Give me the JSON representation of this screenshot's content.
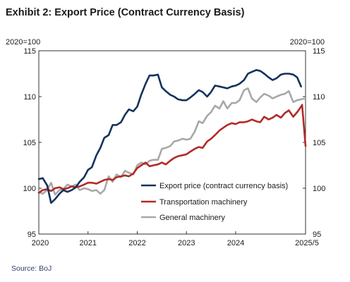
{
  "chart_data": {
    "type": "line",
    "title": "Exhibit 2: Export Price (Contract Currency Basis)",
    "left_unit": "2020=100",
    "right_unit": "2020=100",
    "ylim": [
      95,
      115
    ],
    "yticks": [
      95,
      100,
      105,
      110,
      115
    ],
    "xlim": [
      2020.0,
      2025.42
    ],
    "xticks": [
      {
        "value": 2020,
        "label": "2020"
      },
      {
        "value": 2021,
        "label": "2021"
      },
      {
        "value": 2022,
        "label": "2022"
      },
      {
        "value": 2023,
        "label": "2023"
      },
      {
        "value": 2024,
        "label": "2024"
      },
      {
        "value": 2025.42,
        "label": "2025/5"
      }
    ],
    "legend_position": "bottom-right",
    "source": "Source: BoJ",
    "series": [
      {
        "name": "Export price (contract currency basis)",
        "color": "#14325c",
        "points": [
          [
            2020.0,
            101.0
          ],
          [
            2020.08,
            101.1
          ],
          [
            2020.17,
            100.3
          ],
          [
            2020.25,
            98.4
          ],
          [
            2020.33,
            98.8
          ],
          [
            2020.42,
            99.4
          ],
          [
            2020.5,
            99.8
          ],
          [
            2020.58,
            99.6
          ],
          [
            2020.67,
            99.8
          ],
          [
            2020.75,
            100.1
          ],
          [
            2020.83,
            100.7
          ],
          [
            2020.92,
            101.2
          ],
          [
            2021.0,
            102.0
          ],
          [
            2021.08,
            102.3
          ],
          [
            2021.17,
            103.6
          ],
          [
            2021.25,
            104.4
          ],
          [
            2021.33,
            105.5
          ],
          [
            2021.42,
            105.8
          ],
          [
            2021.5,
            106.9
          ],
          [
            2021.58,
            106.9
          ],
          [
            2021.67,
            107.2
          ],
          [
            2021.75,
            108.0
          ],
          [
            2021.83,
            108.6
          ],
          [
            2021.92,
            108.4
          ],
          [
            2022.0,
            108.9
          ],
          [
            2022.08,
            110.2
          ],
          [
            2022.17,
            111.4
          ],
          [
            2022.25,
            112.3
          ],
          [
            2022.33,
            112.3
          ],
          [
            2022.42,
            112.4
          ],
          [
            2022.5,
            111.0
          ],
          [
            2022.58,
            110.6
          ],
          [
            2022.67,
            110.2
          ],
          [
            2022.75,
            110.0
          ],
          [
            2022.83,
            109.7
          ],
          [
            2022.92,
            109.6
          ],
          [
            2023.0,
            109.6
          ],
          [
            2023.08,
            109.9
          ],
          [
            2023.17,
            110.3
          ],
          [
            2023.25,
            110.7
          ],
          [
            2023.33,
            110.5
          ],
          [
            2023.42,
            110.0
          ],
          [
            2023.5,
            110.5
          ],
          [
            2023.58,
            111.2
          ],
          [
            2023.67,
            111.1
          ],
          [
            2023.75,
            111.0
          ],
          [
            2023.83,
            110.9
          ],
          [
            2023.92,
            111.1
          ],
          [
            2024.0,
            111.2
          ],
          [
            2024.08,
            111.4
          ],
          [
            2024.17,
            111.8
          ],
          [
            2024.25,
            112.5
          ],
          [
            2024.33,
            112.7
          ],
          [
            2024.42,
            112.9
          ],
          [
            2024.5,
            112.8
          ],
          [
            2024.58,
            112.5
          ],
          [
            2024.67,
            112.1
          ],
          [
            2024.75,
            111.8
          ],
          [
            2024.83,
            112.0
          ],
          [
            2024.92,
            112.4
          ],
          [
            2025.0,
            112.5
          ],
          [
            2025.08,
            112.5
          ],
          [
            2025.17,
            112.4
          ],
          [
            2025.25,
            112.1
          ],
          [
            2025.33,
            111.1
          ]
        ]
      },
      {
        "name": "Transportation machinery",
        "color": "#b22a25",
        "points": [
          [
            2020.0,
            99.5
          ],
          [
            2020.08,
            99.8
          ],
          [
            2020.17,
            99.9
          ],
          [
            2020.25,
            99.7
          ],
          [
            2020.33,
            100.0
          ],
          [
            2020.42,
            100.1
          ],
          [
            2020.5,
            99.9
          ],
          [
            2020.58,
            100.0
          ],
          [
            2020.67,
            100.2
          ],
          [
            2020.75,
            100.1
          ],
          [
            2020.83,
            100.2
          ],
          [
            2020.92,
            100.4
          ],
          [
            2021.0,
            100.6
          ],
          [
            2021.08,
            100.6
          ],
          [
            2021.17,
            100.5
          ],
          [
            2021.25,
            100.7
          ],
          [
            2021.33,
            100.9
          ],
          [
            2021.42,
            101.0
          ],
          [
            2021.5,
            100.9
          ],
          [
            2021.58,
            101.2
          ],
          [
            2021.67,
            101.3
          ],
          [
            2021.75,
            101.4
          ],
          [
            2021.83,
            101.3
          ],
          [
            2021.92,
            101.6
          ],
          [
            2022.0,
            102.2
          ],
          [
            2022.08,
            102.5
          ],
          [
            2022.17,
            102.8
          ],
          [
            2022.25,
            102.4
          ],
          [
            2022.33,
            102.5
          ],
          [
            2022.42,
            102.6
          ],
          [
            2022.5,
            102.8
          ],
          [
            2022.58,
            102.6
          ],
          [
            2022.67,
            103.0
          ],
          [
            2022.75,
            103.3
          ],
          [
            2022.83,
            103.5
          ],
          [
            2022.92,
            103.6
          ],
          [
            2023.0,
            103.7
          ],
          [
            2023.08,
            104.0
          ],
          [
            2023.17,
            104.3
          ],
          [
            2023.25,
            104.5
          ],
          [
            2023.33,
            104.4
          ],
          [
            2023.42,
            105.1
          ],
          [
            2023.5,
            105.4
          ],
          [
            2023.58,
            105.8
          ],
          [
            2023.67,
            106.3
          ],
          [
            2023.75,
            106.6
          ],
          [
            2023.83,
            106.9
          ],
          [
            2023.92,
            107.1
          ],
          [
            2024.0,
            107.0
          ],
          [
            2024.08,
            107.2
          ],
          [
            2024.17,
            107.2
          ],
          [
            2024.25,
            107.3
          ],
          [
            2024.33,
            107.5
          ],
          [
            2024.42,
            107.3
          ],
          [
            2024.5,
            107.2
          ],
          [
            2024.58,
            107.8
          ],
          [
            2024.67,
            107.5
          ],
          [
            2024.75,
            107.7
          ],
          [
            2024.83,
            108.0
          ],
          [
            2024.92,
            107.7
          ],
          [
            2025.0,
            108.2
          ],
          [
            2025.08,
            108.5
          ],
          [
            2025.17,
            107.8
          ],
          [
            2025.25,
            108.3
          ],
          [
            2025.33,
            108.9
          ],
          [
            2025.35,
            109.1
          ],
          [
            2025.38,
            107.2
          ],
          [
            2025.42,
            104.6
          ]
        ]
      },
      {
        "name": "General machinery",
        "color": "#a8a8a8",
        "points": [
          [
            2020.0,
            99.6
          ],
          [
            2020.08,
            99.4
          ],
          [
            2020.17,
            99.8
          ],
          [
            2020.25,
            100.6
          ],
          [
            2020.33,
            99.3
          ],
          [
            2020.42,
            99.8
          ],
          [
            2020.5,
            99.9
          ],
          [
            2020.58,
            100.4
          ],
          [
            2020.67,
            100.2
          ],
          [
            2020.75,
            100.4
          ],
          [
            2020.83,
            99.8
          ],
          [
            2020.92,
            100.0
          ],
          [
            2021.0,
            99.9
          ],
          [
            2021.08,
            99.7
          ],
          [
            2021.17,
            99.8
          ],
          [
            2021.25,
            99.4
          ],
          [
            2021.33,
            99.8
          ],
          [
            2021.42,
            101.3
          ],
          [
            2021.5,
            100.7
          ],
          [
            2021.58,
            101.5
          ],
          [
            2021.67,
            101.2
          ],
          [
            2021.75,
            101.9
          ],
          [
            2021.83,
            101.7
          ],
          [
            2021.92,
            101.5
          ],
          [
            2022.0,
            102.5
          ],
          [
            2022.08,
            102.8
          ],
          [
            2022.17,
            102.6
          ],
          [
            2022.25,
            103.0
          ],
          [
            2022.33,
            103.1
          ],
          [
            2022.42,
            103.1
          ],
          [
            2022.5,
            104.3
          ],
          [
            2022.58,
            104.4
          ],
          [
            2022.67,
            104.6
          ],
          [
            2022.75,
            105.1
          ],
          [
            2022.83,
            105.2
          ],
          [
            2022.92,
            105.4
          ],
          [
            2023.0,
            105.3
          ],
          [
            2023.08,
            105.4
          ],
          [
            2023.17,
            106.2
          ],
          [
            2023.25,
            107.3
          ],
          [
            2023.33,
            107.1
          ],
          [
            2023.42,
            107.9
          ],
          [
            2023.5,
            108.3
          ],
          [
            2023.58,
            109.0
          ],
          [
            2023.67,
            108.7
          ],
          [
            2023.75,
            109.5
          ],
          [
            2023.83,
            108.7
          ],
          [
            2023.92,
            109.3
          ],
          [
            2024.0,
            109.3
          ],
          [
            2024.08,
            109.6
          ],
          [
            2024.17,
            110.7
          ],
          [
            2024.25,
            110.9
          ],
          [
            2024.33,
            109.8
          ],
          [
            2024.42,
            109.4
          ],
          [
            2024.5,
            109.9
          ],
          [
            2024.58,
            110.3
          ],
          [
            2024.67,
            110.1
          ],
          [
            2024.75,
            109.8
          ],
          [
            2024.83,
            110.0
          ],
          [
            2024.92,
            110.2
          ],
          [
            2025.0,
            110.3
          ],
          [
            2025.08,
            110.6
          ],
          [
            2025.17,
            109.4
          ],
          [
            2025.25,
            109.6
          ],
          [
            2025.33,
            109.7
          ],
          [
            2025.42,
            109.8
          ]
        ]
      }
    ]
  }
}
